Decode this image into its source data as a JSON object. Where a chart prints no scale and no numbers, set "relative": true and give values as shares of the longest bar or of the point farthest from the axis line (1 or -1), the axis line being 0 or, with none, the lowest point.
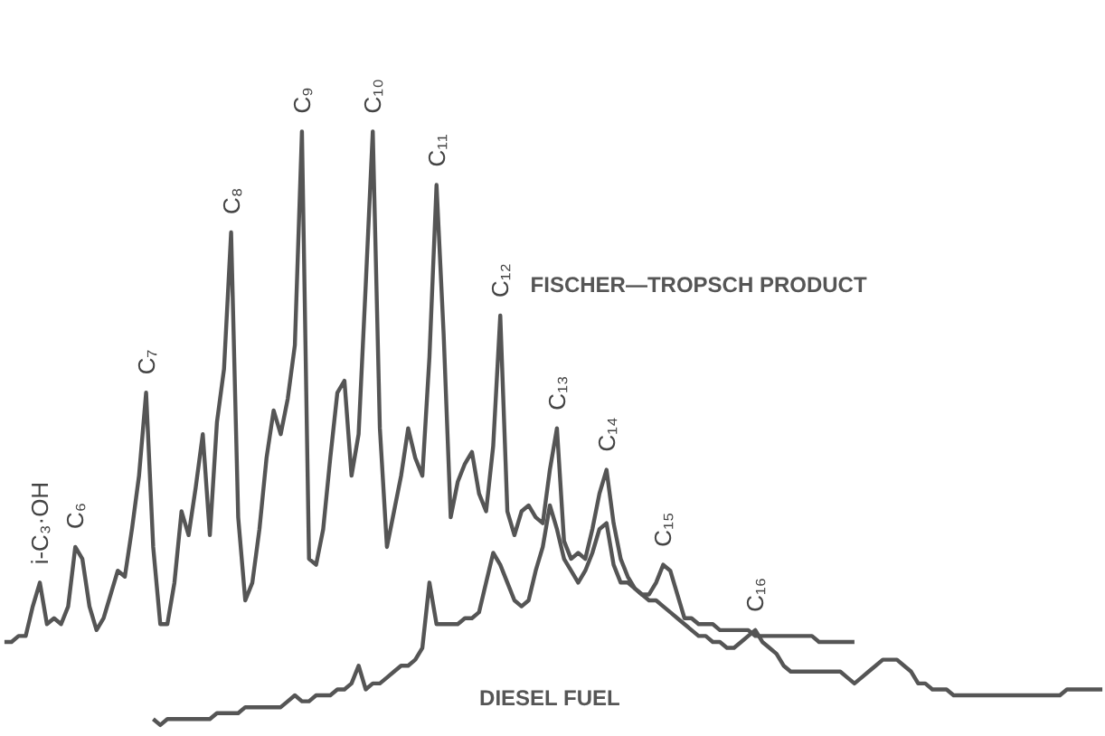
{
  "chart_data": {
    "type": "line",
    "relative": true,
    "grid": false,
    "legend": false,
    "marker": "none",
    "line_style": "solid",
    "categories": [
      null,
      null,
      null,
      null,
      null,
      null,
      null,
      null,
      null,
      null,
      null,
      null,
      null,
      null,
      null,
      null,
      null,
      null,
      null,
      null,
      null,
      null,
      null,
      null,
      null,
      null,
      null,
      null,
      null,
      null,
      null,
      null,
      null,
      null,
      null,
      null,
      null,
      null,
      null,
      null,
      null,
      null,
      null,
      null,
      null,
      null,
      null,
      null,
      null,
      null,
      null,
      null,
      null,
      null,
      null,
      null,
      null,
      null,
      null,
      null,
      null,
      null,
      null,
      null,
      null,
      null,
      null,
      null,
      null,
      null,
      null,
      null,
      null,
      null,
      null,
      null,
      null,
      null,
      null,
      null,
      null,
      null,
      null,
      null,
      null,
      null,
      null,
      null,
      null,
      null,
      null,
      null,
      null,
      null,
      null,
      null,
      null,
      null,
      null,
      null,
      null,
      null,
      null,
      null,
      null,
      null,
      null,
      null,
      null,
      null,
      null,
      null,
      null,
      null,
      null,
      null,
      null,
      null,
      null,
      null,
      null,
      null,
      null,
      null,
      null,
      null,
      null,
      null,
      null,
      null,
      null,
      null,
      null,
      null,
      null,
      null,
      null,
      null,
      null,
      null,
      null,
      null,
      null,
      null,
      null,
      null,
      null,
      null,
      null,
      null,
      null,
      null,
      null,
      null,
      null,
      null
    ],
    "series": [
      {
        "name": "FISCHER—TROPSCH PRODUCT",
        "color": "#555555",
        "values": [
          0.14,
          0.14,
          0.15,
          0.15,
          0.2,
          0.24,
          0.17,
          0.18,
          0.17,
          0.2,
          0.3,
          0.28,
          0.2,
          0.16,
          0.18,
          0.22,
          0.26,
          0.25,
          0.33,
          0.42,
          0.56,
          0.3,
          0.17,
          0.17,
          0.24,
          0.36,
          0.32,
          0.4,
          0.49,
          0.32,
          0.51,
          0.6,
          0.83,
          0.35,
          0.21,
          0.24,
          0.33,
          0.45,
          0.53,
          0.49,
          0.55,
          0.64,
          1.0,
          0.28,
          0.27,
          0.33,
          0.45,
          0.56,
          0.58,
          0.42,
          0.49,
          0.74,
          1.0,
          0.5,
          0.3,
          0.36,
          0.42,
          0.5,
          0.45,
          0.42,
          0.62,
          0.91,
          0.66,
          0.35,
          0.41,
          0.44,
          0.46,
          0.39,
          0.36,
          0.47,
          0.69,
          0.36,
          0.32,
          0.36,
          0.37,
          0.35,
          0.34,
          0.43,
          0.5,
          0.31,
          0.28,
          0.29,
          0.28,
          0.33,
          0.39,
          0.43,
          0.34,
          0.28,
          0.25,
          0.23,
          0.22,
          0.22,
          0.24,
          0.27,
          0.26,
          0.22,
          0.18,
          0.18,
          0.17,
          0.17,
          0.17,
          0.16,
          0.16,
          0.16,
          0.16,
          0.16,
          0.15,
          0.15,
          0.15,
          0.15,
          0.15,
          0.15,
          0.15,
          0.15,
          0.15,
          0.14,
          0.14,
          0.14,
          0.14,
          0.14,
          0.14,
          null,
          null,
          null,
          null,
          null,
          null,
          null,
          null,
          null,
          null,
          null,
          null,
          null,
          null,
          null,
          null,
          null,
          null,
          null,
          null,
          null,
          null,
          null,
          null,
          null,
          null,
          null,
          null,
          null,
          null,
          null,
          null,
          null,
          null,
          null
        ]
      },
      {
        "name": "DIESEL FUEL",
        "color": "#555555",
        "values": [
          null,
          null,
          null,
          null,
          null,
          null,
          null,
          null,
          null,
          null,
          null,
          null,
          null,
          null,
          null,
          null,
          null,
          null,
          null,
          null,
          null,
          0.01,
          0,
          0.01,
          0.01,
          0.01,
          0.01,
          0.01,
          0.01,
          0.01,
          0.02,
          0.02,
          0.02,
          0.02,
          0.03,
          0.03,
          0.03,
          0.03,
          0.03,
          0.03,
          0.04,
          0.05,
          0.04,
          0.04,
          0.05,
          0.05,
          0.05,
          0.06,
          0.06,
          0.07,
          0.1,
          0.06,
          0.07,
          0.07,
          0.08,
          0.09,
          0.1,
          0.1,
          0.11,
          0.13,
          0.24,
          0.17,
          0.17,
          0.17,
          0.17,
          0.18,
          0.18,
          0.19,
          0.24,
          0.29,
          0.27,
          0.24,
          0.21,
          0.2,
          0.21,
          0.26,
          0.3,
          0.37,
          0.33,
          0.28,
          0.26,
          0.24,
          0.26,
          0.29,
          0.33,
          0.34,
          0.27,
          0.24,
          0.24,
          0.23,
          0.22,
          0.21,
          0.21,
          0.2,
          0.19,
          0.18,
          0.17,
          0.16,
          0.15,
          0.15,
          0.14,
          0.14,
          0.13,
          0.13,
          0.14,
          0.15,
          0.16,
          0.14,
          0.13,
          0.12,
          0.1,
          0.09,
          0.09,
          0.09,
          0.09,
          0.09,
          0.09,
          0.09,
          0.09,
          0.08,
          0.07,
          0.08,
          0.09,
          0.1,
          0.11,
          0.11,
          0.11,
          0.1,
          0.09,
          0.07,
          0.07,
          0.06,
          0.06,
          0.06,
          0.05,
          0.05,
          0.05,
          0.05,
          0.05,
          0.05,
          0.05,
          0.05,
          0.05,
          0.05,
          0.05,
          0.05,
          0.05,
          0.05,
          0.05,
          0.05,
          0.06,
          0.06,
          0.06,
          0.06,
          0.06,
          0.06
        ]
      }
    ],
    "annotations": [
      "i-C₃·OH",
      "C₆",
      "C₇",
      "C₈",
      "C₉",
      "C₁₀",
      "C₁₁",
      "C₁₂",
      "C₁₃",
      "C₁₄",
      "C₁₅",
      "C₁₆"
    ]
  }
}
